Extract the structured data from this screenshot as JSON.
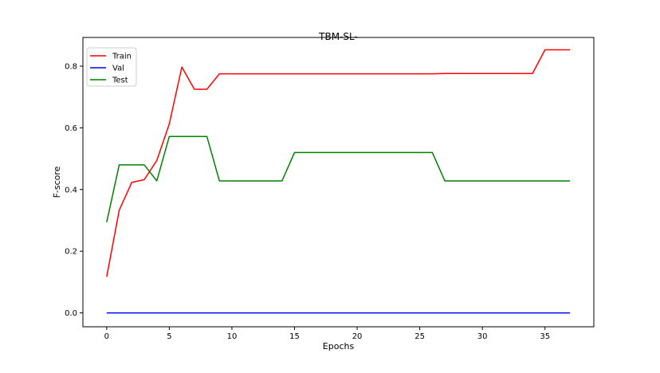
{
  "chart_data": {
    "type": "line",
    "title": "TBM-SL-",
    "xlabel": "Epochs",
    "ylabel": "F-score",
    "xlim": [
      -1.9,
      38.9
    ],
    "ylim": [
      -0.045,
      0.893
    ],
    "xticks": [
      0,
      5,
      10,
      15,
      20,
      25,
      30,
      35
    ],
    "yticks": [
      0.0,
      0.2,
      0.4,
      0.6,
      0.8
    ],
    "ytick_labels": [
      "0.0",
      "0.2",
      "0.4",
      "0.6",
      "0.8"
    ],
    "grid": false,
    "legend_position": "top-left",
    "x": [
      0,
      1,
      2,
      3,
      4,
      5,
      6,
      7,
      8,
      9,
      10,
      11,
      12,
      13,
      14,
      15,
      16,
      17,
      18,
      19,
      20,
      21,
      22,
      23,
      24,
      25,
      26,
      27,
      28,
      29,
      30,
      31,
      32,
      33,
      34,
      35,
      36,
      37
    ],
    "series": [
      {
        "name": "Train",
        "color": "#ff0000",
        "values": [
          0.117,
          0.333,
          0.423,
          0.432,
          0.494,
          0.613,
          0.797,
          0.725,
          0.725,
          0.775,
          0.775,
          0.775,
          0.775,
          0.775,
          0.775,
          0.775,
          0.775,
          0.775,
          0.775,
          0.775,
          0.775,
          0.775,
          0.775,
          0.775,
          0.775,
          0.775,
          0.775,
          0.776,
          0.776,
          0.776,
          0.776,
          0.776,
          0.776,
          0.776,
          0.776,
          0.853,
          0.853,
          0.853
        ]
      },
      {
        "name": "Val",
        "color": "#0000ff",
        "values": [
          0,
          0,
          0,
          0,
          0,
          0,
          0,
          0,
          0,
          0,
          0,
          0,
          0,
          0,
          0,
          0,
          0,
          0,
          0,
          0,
          0,
          0,
          0,
          0,
          0,
          0,
          0,
          0,
          0,
          0,
          0,
          0,
          0,
          0,
          0,
          0,
          0,
          0
        ]
      },
      {
        "name": "Test",
        "color": "#008000",
        "values": [
          0.294,
          0.48,
          0.48,
          0.48,
          0.428,
          0.572,
          0.572,
          0.572,
          0.572,
          0.428,
          0.428,
          0.428,
          0.428,
          0.428,
          0.428,
          0.52,
          0.52,
          0.52,
          0.52,
          0.52,
          0.52,
          0.52,
          0.52,
          0.52,
          0.52,
          0.52,
          0.52,
          0.428,
          0.428,
          0.428,
          0.428,
          0.428,
          0.428,
          0.428,
          0.428,
          0.428,
          0.428,
          0.428
        ]
      }
    ]
  }
}
